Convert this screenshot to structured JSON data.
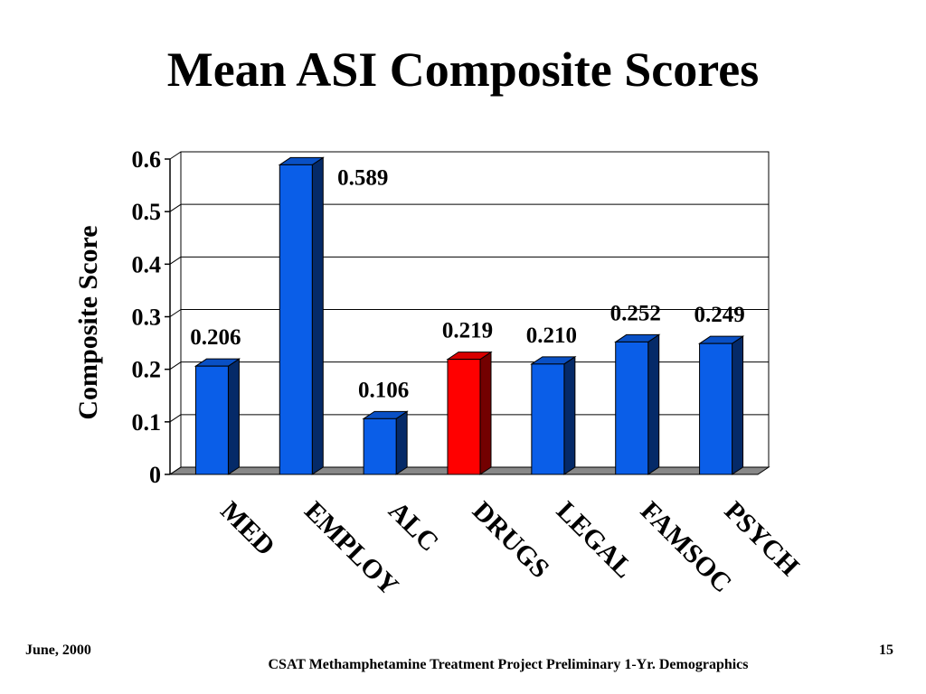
{
  "chart_data": {
    "type": "bar",
    "title": "Mean ASI Composite Scores",
    "y_label": "Composite Score",
    "categories": [
      "MED",
      "EMPLOY",
      "ALC",
      "DRUGS",
      "LEGAL",
      "FAMSOC",
      "PSYCH"
    ],
    "values": [
      0.206,
      0.589,
      0.106,
      0.219,
      0.21,
      0.252,
      0.249
    ],
    "value_labels": [
      "0.206",
      "0.589",
      "0.106",
      "0.219",
      "0.210",
      "0.252",
      "0.249"
    ],
    "colors": [
      "#0a5ee8",
      "#0a5ee8",
      "#0a5ee8",
      "#ff0000",
      "#0a5ee8",
      "#0a5ee8",
      "#0a5ee8"
    ],
    "ylim": [
      0,
      0.6
    ],
    "yticks": [
      0,
      0.1,
      0.2,
      0.3,
      0.4,
      0.5,
      0.6
    ],
    "grid": true
  },
  "footer": {
    "date": "June, 2000",
    "page": "15",
    "text": "CSAT Methamphetamine Treatment Project Preliminary 1-Yr. Demographics"
  }
}
